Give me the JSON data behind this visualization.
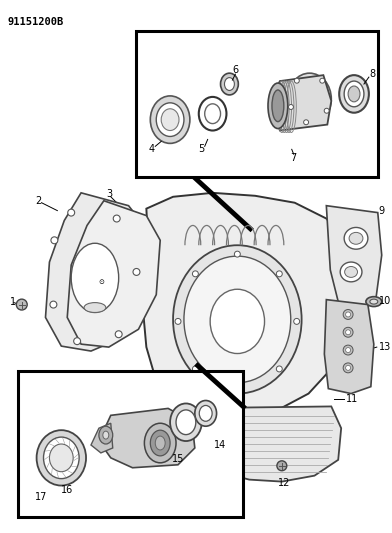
{
  "title": "91151200B",
  "background_color": "#ffffff",
  "fig_width": 3.92,
  "fig_height": 5.33,
  "dpi": 100
}
